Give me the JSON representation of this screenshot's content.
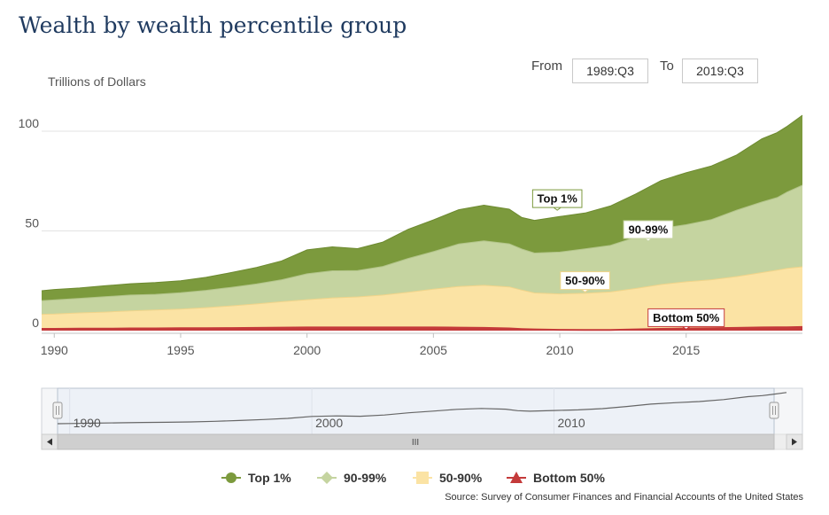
{
  "title": "Wealth by wealth percentile group",
  "range": {
    "from_label": "From",
    "from_value": "1989:Q3",
    "to_label": "To",
    "to_value": "2019:Q3"
  },
  "navigator_scroll_glyph": "III",
  "source": "Source: Survey of Consumer Finances and Financial Accounts of the United States",
  "colors": {
    "top1": "#7c9a3d",
    "p90_99": "#c5d4a0",
    "p50_90": "#fbe3a4",
    "bottom50": "#c43a3a"
  },
  "chart_data": {
    "type": "area",
    "stacked": true,
    "ylabel": "Trillions of Dollars",
    "ylim": [
      0,
      110
    ],
    "yticks": [
      0,
      50,
      100
    ],
    "xlim": [
      1989.5,
      2019.6
    ],
    "xticks": [
      1990,
      1995,
      2000,
      2005,
      2010,
      2015
    ],
    "grid": true,
    "x": [
      1989.5,
      1990,
      1991,
      1992,
      1993,
      1994,
      1995,
      1996,
      1997,
      1998,
      1999,
      2000,
      2001,
      2002,
      2003,
      2004,
      2005,
      2006,
      2007,
      2008,
      2008.5,
      2009,
      2010,
      2011,
      2012,
      2013,
      2014,
      2015,
      2016,
      2017,
      2018,
      2018.6,
      2019,
      2019.6
    ],
    "series": [
      {
        "name": "Bottom 50%",
        "values": [
          0.9,
          0.9,
          1.0,
          1.0,
          1.1,
          1.1,
          1.2,
          1.2,
          1.3,
          1.4,
          1.5,
          1.6,
          1.6,
          1.6,
          1.6,
          1.6,
          1.6,
          1.5,
          1.4,
          1.1,
          0.8,
          0.6,
          0.4,
          0.3,
          0.3,
          0.6,
          0.9,
          1.1,
          1.2,
          1.4,
          1.6,
          1.7,
          1.7,
          1.8
        ]
      },
      {
        "name": "50-90%",
        "values": [
          7.3,
          7.4,
          7.9,
          8.3,
          8.8,
          9.2,
          9.6,
          10.3,
          11.1,
          12.0,
          13.0,
          13.9,
          14.8,
          15.3,
          16.2,
          17.6,
          19.2,
          20.6,
          21.3,
          20.8,
          19.5,
          18.3,
          18.0,
          18.4,
          19.1,
          20.5,
          22.2,
          23.4,
          24.3,
          25.7,
          27.5,
          28.6,
          29.5,
          30.2
        ]
      },
      {
        "name": "90-99%",
        "values": [
          6.8,
          7.1,
          7.3,
          7.7,
          7.9,
          7.9,
          8.2,
          8.7,
          9.3,
          10.0,
          11.0,
          13.0,
          13.6,
          13.2,
          14.4,
          17.0,
          18.8,
          21.3,
          22.3,
          21.6,
          20.6,
          20.0,
          21.0,
          22.3,
          23.3,
          25.7,
          28.1,
          28.6,
          30.2,
          33.3,
          35.4,
          36.4,
          38.3,
          40.9
        ]
      },
      {
        "name": "Top 1%",
        "values": [
          5.0,
          5.2,
          5.2,
          5.5,
          5.7,
          5.9,
          6.0,
          6.5,
          7.4,
          8.3,
          9.5,
          12.0,
          12.0,
          11.0,
          12.2,
          14.6,
          15.9,
          17.2,
          17.9,
          17.4,
          15.8,
          16.4,
          17.8,
          18.0,
          19.8,
          21.7,
          24.0,
          26.1,
          26.9,
          27.7,
          31.7,
          32.6,
          33.0,
          35.1
        ]
      }
    ],
    "annotations": [
      {
        "text": "Top 1%",
        "x": 2009.9,
        "y": 60.4
      },
      {
        "text": "90-99%",
        "x": 2013.5,
        "y": 44.9
      },
      {
        "text": "50-90%",
        "x": 2011.0,
        "y": 19.3
      },
      {
        "text": "Bottom 50%",
        "x": 2015.0,
        "y": 0.7
      }
    ],
    "navigator": {
      "xticks": [
        1990,
        2000,
        2010
      ]
    }
  },
  "legend": [
    {
      "name": "Top 1%",
      "marker": "circle"
    },
    {
      "name": "90-99%",
      "marker": "diamond"
    },
    {
      "name": "50-90%",
      "marker": "square"
    },
    {
      "name": "Bottom 50%",
      "marker": "triangle"
    }
  ]
}
